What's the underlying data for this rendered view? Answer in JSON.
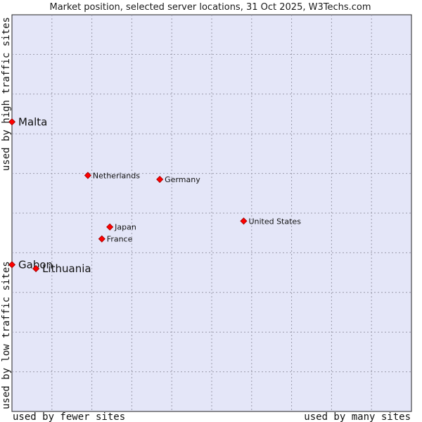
{
  "chart_data": {
    "type": "scatter",
    "title": "Market position, selected server locations, 31 Oct 2025, W3Techs.com",
    "xlabel_left": "used by fewer sites",
    "xlabel_right": "used by many sites",
    "ylabel_bottom": "used by low traffic sites",
    "ylabel_top": "used by high traffic sites",
    "xlim": [
      0,
      100
    ],
    "ylim": [
      0,
      100
    ],
    "grid": true,
    "point_color": "#ff0000",
    "plot_background": "#e4e6f8",
    "points": [
      {
        "label": "Malta",
        "x": 0,
        "y": 73,
        "size": "large"
      },
      {
        "label": "Gabon",
        "x": 0,
        "y": 37,
        "size": "large"
      },
      {
        "label": "Lithuania",
        "x": 6,
        "y": 36,
        "size": "large"
      },
      {
        "label": "Netherlands",
        "x": 19,
        "y": 59.5,
        "size": "small"
      },
      {
        "label": "Germany",
        "x": 37,
        "y": 58.5,
        "size": "small"
      },
      {
        "label": "United States",
        "x": 58,
        "y": 48,
        "size": "small"
      },
      {
        "label": "Japan",
        "x": 24.5,
        "y": 46.5,
        "size": "small"
      },
      {
        "label": "France",
        "x": 22.5,
        "y": 43.5,
        "size": "small"
      }
    ]
  }
}
